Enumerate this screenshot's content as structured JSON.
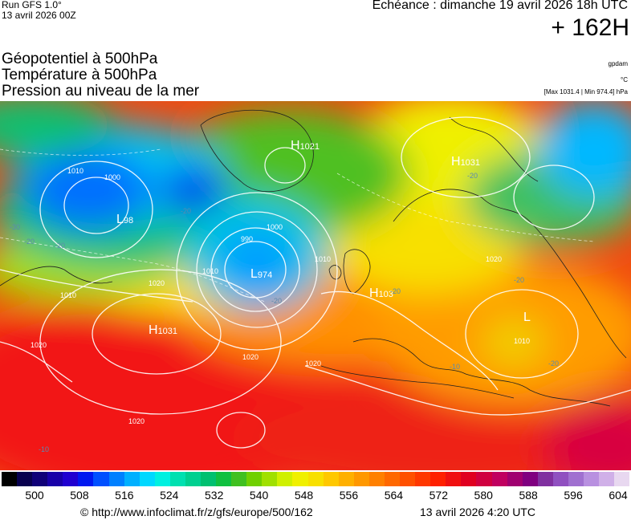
{
  "header": {
    "run_model": "Run GFS 1.0°",
    "run_date": "13 avril 2026 00Z",
    "valid_time": "Echéance : dimanche 19 avril 2026 18h UTC",
    "lead_time": "+ 162H"
  },
  "fields": [
    {
      "label": "Géopotentiel à 500hPa",
      "unit": "gpdam"
    },
    {
      "label": "Température à 500hPa",
      "unit": "°C"
    },
    {
      "label": "Pression au niveau de la mer",
      "unit": "[Max 1031.4 | Min 974.4] hPa"
    }
  ],
  "pressure_centers": [
    {
      "type": "H",
      "value": "1021"
    },
    {
      "type": "H",
      "value": "1031"
    },
    {
      "type": "L",
      "value": "98"
    },
    {
      "type": "L",
      "value": "974"
    },
    {
      "type": "H",
      "value": "103"
    },
    {
      "type": "H",
      "value": "1031"
    },
    {
      "type": "L",
      "value": ""
    }
  ],
  "isobar_labels": [
    "1010",
    "1000",
    "990",
    "1000",
    "1010",
    "1020",
    "1020",
    "1020",
    "1020",
    "1020",
    "1010",
    "1010",
    "1010",
    "1020"
  ],
  "temp_labels": [
    "-30",
    "-20",
    "-20",
    "-20",
    "-20",
    "-10",
    "-20",
    "-20",
    "-20",
    "-20",
    "-10"
  ],
  "legend": {
    "colors": [
      "#000000",
      "#08004e",
      "#100078",
      "#1800a8",
      "#2000d0",
      "#0018f0",
      "#0050ff",
      "#0080ff",
      "#00b0ff",
      "#00d8ff",
      "#00f0e0",
      "#00e0b0",
      "#00d090",
      "#00c070",
      "#10c040",
      "#40c020",
      "#70d000",
      "#a0e000",
      "#d0f000",
      "#f0f000",
      "#f8e000",
      "#ffc800",
      "#ffb000",
      "#ff9800",
      "#ff8000",
      "#ff6800",
      "#ff5000",
      "#ff3800",
      "#ff2000",
      "#f01010",
      "#e00020",
      "#d00040",
      "#c00060",
      "#a00070",
      "#800080",
      "#8030a0",
      "#9050c0",
      "#a070d0",
      "#b890e0",
      "#d0b0e8",
      "#e8d8f0"
    ],
    "ticks": [
      "500",
      "508",
      "516",
      "524",
      "532",
      "540",
      "548",
      "556",
      "564",
      "572",
      "580",
      "588",
      "596",
      "604"
    ]
  },
  "footer": {
    "url": "© http://www.infoclimat.fr/z/gfs/europe/500/162",
    "issued": "13 avril 2026  4:20 UTC"
  }
}
